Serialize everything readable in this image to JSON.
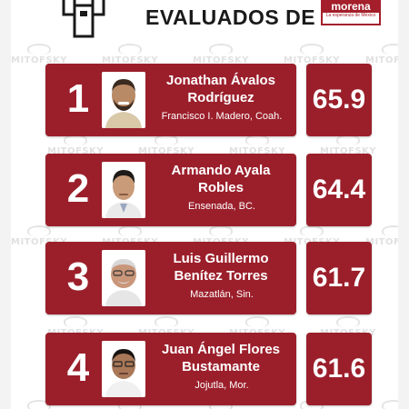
{
  "header": {
    "title": "EVALUADOS DE",
    "logo_text": "morena",
    "logo_tagline": "La esperanza de México",
    "podium_icon": "podium-icon"
  },
  "watermark": "MITOFSKY",
  "colors": {
    "card": "#9b1f2b",
    "text": "#ffffff",
    "title": "#1a1a1a"
  },
  "ranking": [
    {
      "rank": "1",
      "name_line1": "Jonathan Ávalos",
      "name_line2": "Rodríguez",
      "location": "Francisco I. Madero, Coah.",
      "score": "65.9"
    },
    {
      "rank": "2",
      "name_line1": "Armando Ayala",
      "name_line2": "Robles",
      "location": "Ensenada, BC.",
      "score": "64.4"
    },
    {
      "rank": "3",
      "name_line1": "Luis Guillermo",
      "name_line2": "Benítez Torres",
      "location": "Mazatlán, Sin.",
      "score": "61.7"
    },
    {
      "rank": "4",
      "name_line1": "Juan Ángel Flores",
      "name_line2": "Bustamante",
      "location": "Jojutla, Mor.",
      "score": "61.6"
    }
  ]
}
